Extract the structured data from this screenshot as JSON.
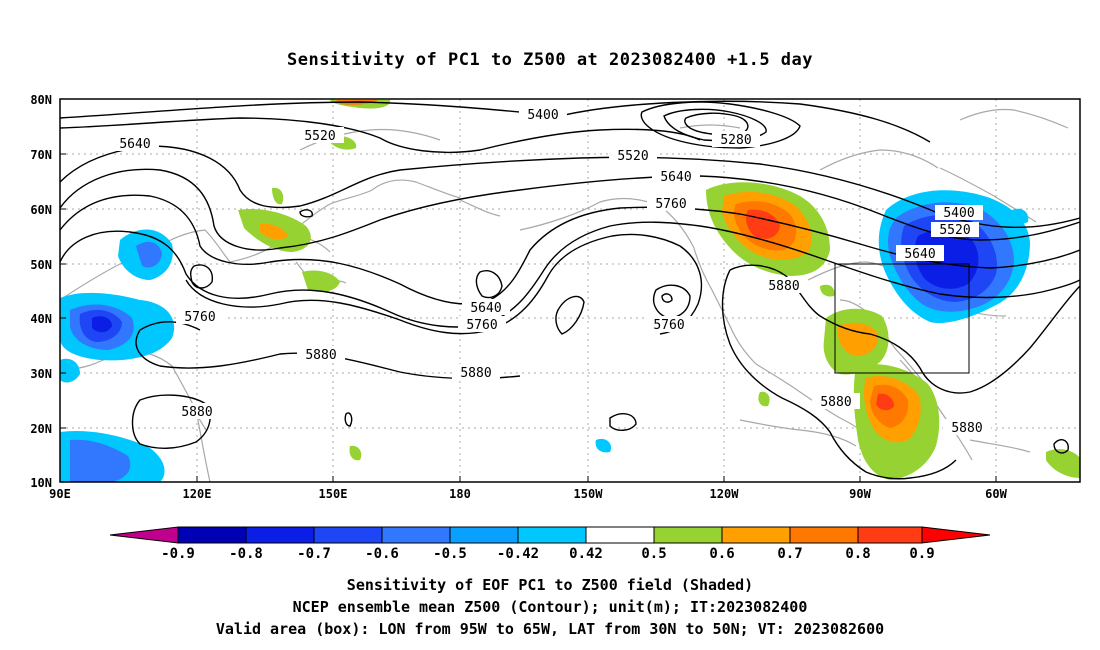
{
  "title": "Sensitivity of PC1 to Z500 at 2023082400 +1.5 day",
  "axes": {
    "lat_labels": [
      "80N",
      "70N",
      "60N",
      "50N",
      "40N",
      "30N",
      "20N",
      "10N"
    ],
    "lon_labels": [
      "90E",
      "120E",
      "150E",
      "180",
      "150W",
      "120W",
      "90W",
      "60W"
    ]
  },
  "contour_labels": {
    "c5400_top": "5400",
    "c5520_left": "5520",
    "c5640_left": "5640",
    "c5280": "5280",
    "c5520_mid": "5520",
    "c5640_mid": "5640",
    "c5760_mid": "5760",
    "c5400_right": "5400",
    "c5520_right": "5520",
    "c5640_right": "5640",
    "c5880_na": "5880",
    "c5760_asia": "5760",
    "c5640_trough": "5640",
    "c5760_trough": "5760",
    "c5880_asia": "5880",
    "c5880_pac": "5880",
    "c5760_low": "5760",
    "c5880_scs": "5880",
    "c5880_gulf": "5880",
    "c5880_carib": "5880"
  },
  "colorbar": {
    "labels": [
      "-0.9",
      "-0.8",
      "-0.7",
      "-0.6",
      "-0.5",
      "-0.42",
      "0.42",
      "0.5",
      "0.6",
      "0.7",
      "0.8",
      "0.9"
    ],
    "colors": [
      "#c0008c",
      "#0000b4",
      "#0a1ee6",
      "#1e46f5",
      "#3278ff",
      "#0aa0ff",
      "#00c8ff",
      "#ffffff",
      "#96d232",
      "#ffa000",
      "#ff7800",
      "#ff3c14",
      "#ff0000",
      "#ffa0c8"
    ]
  },
  "captions": {
    "line1": "Sensitivity of EOF PC1 to Z500 field (Shaded)",
    "line2": "NCEP ensemble mean Z500 (Contour); unit(m); IT:2023082400",
    "line3": "Valid area (box): LON from 95W to 65W, LAT from 30N to 50N; VT: 2023082600"
  },
  "valid_area": {
    "lon_min": "95W",
    "lon_max": "65W",
    "lat_min": "30N",
    "lat_max": "50N"
  }
}
